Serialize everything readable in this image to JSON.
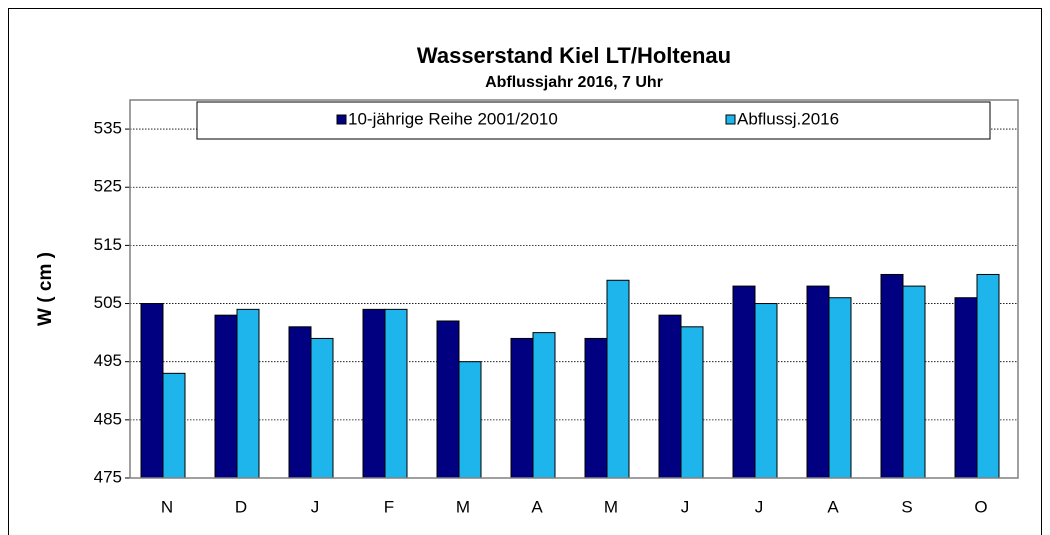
{
  "chart_data": {
    "type": "bar",
    "title": "Wasserstand Kiel LT/Holtenau",
    "subtitle": "Abflussjahr 2016, 7 Uhr",
    "y_label": "W ( cm )",
    "categories": [
      "N",
      "D",
      "J",
      "F",
      "M",
      "A",
      "M",
      "J",
      "J",
      "A",
      "S",
      "O"
    ],
    "series": [
      {
        "name": "10-jährige Reihe  2001/2010",
        "color": "#000080",
        "values": [
          505,
          503,
          501,
          504,
          502,
          499,
          499,
          503,
          508,
          508,
          510,
          506
        ]
      },
      {
        "name": "Abflussj.2016",
        "color": "#1eb4ec",
        "values": [
          493,
          504,
          499,
          504,
          495,
          500,
          509,
          501,
          505,
          506,
          508,
          510
        ]
      }
    ],
    "ylim": [
      475,
      540
    ],
    "yticks": [
      475,
      485,
      495,
      505,
      515,
      525,
      535
    ],
    "grid": true
  }
}
